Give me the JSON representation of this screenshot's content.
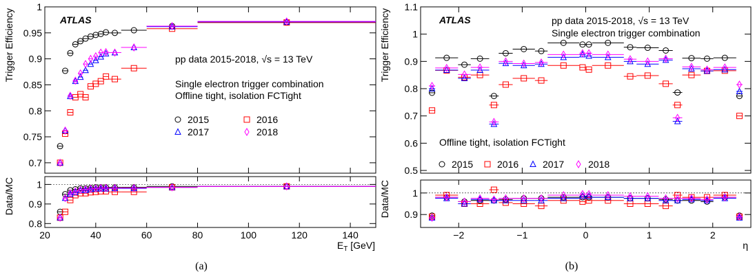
{
  "chart_data": [
    {
      "type": "scatter",
      "panel_label": "(a)",
      "atlas_label": "ATLAS",
      "info_lines": [
        "pp data 2015-2018, √s = 13 TeV",
        "",
        "Single electron trigger combination",
        "Offline tight, isolation FCTight"
      ],
      "ylabel": "Trigger Efficiency",
      "ratio_ylabel": "Data/MC",
      "xlabel": "E_T [GeV]",
      "xlim": [
        20,
        150
      ],
      "ylim": [
        0.68,
        1.0
      ],
      "ratio_ylim": [
        0.78,
        1.04
      ],
      "xticks": [
        20,
        40,
        60,
        80,
        100,
        120,
        140
      ],
      "yticks": [
        0.7,
        0.75,
        0.8,
        0.85,
        0.9,
        0.95,
        1
      ],
      "ratio_yticks": [
        0.8,
        0.9,
        1
      ],
      "legend_columns": 2,
      "x_bins": [
        [
          25,
          27
        ],
        [
          27,
          29
        ],
        [
          29,
          31
        ],
        [
          31,
          33
        ],
        [
          33,
          35
        ],
        [
          35,
          37
        ],
        [
          37,
          39
        ],
        [
          39,
          41
        ],
        [
          41,
          43
        ],
        [
          43,
          45
        ],
        [
          45,
          50
        ],
        [
          50,
          60
        ],
        [
          60,
          80
        ],
        [
          80,
          150
        ]
      ],
      "series": [
        {
          "name": "2015",
          "marker": "circle",
          "color": "#000000",
          "values": [
            0.732,
            0.877,
            0.911,
            0.928,
            0.934,
            0.939,
            0.943,
            0.946,
            0.948,
            0.951,
            0.95,
            0.955,
            0.963,
            0.97
          ],
          "ratio": [
            0.86,
            0.95,
            0.97,
            0.975,
            0.98,
            0.98,
            0.982,
            0.985,
            0.985,
            0.985,
            0.985,
            0.985,
            0.99,
            0.99
          ]
        },
        {
          "name": "2016",
          "marker": "square",
          "color": "#ff0000",
          "values": [
            0.7,
            0.756,
            0.797,
            0.826,
            0.832,
            0.826,
            0.847,
            0.852,
            0.857,
            0.866,
            0.861,
            0.882,
            0.958,
            0.97
          ],
          "ratio": [
            0.83,
            0.86,
            0.92,
            0.945,
            0.955,
            0.955,
            0.96,
            0.962,
            0.965,
            0.965,
            0.962,
            0.962,
            0.985,
            0.99
          ]
        },
        {
          "name": "2017",
          "marker": "triangle",
          "color": "#0000ff",
          "values": [
            0.7,
            0.762,
            0.828,
            0.857,
            0.865,
            0.878,
            0.89,
            0.897,
            0.904,
            0.91,
            0.912,
            0.922,
            0.962,
            0.971
          ],
          "ratio": [
            0.83,
            0.93,
            0.95,
            0.96,
            0.97,
            0.97,
            0.975,
            0.978,
            0.978,
            0.978,
            0.98,
            0.98,
            0.985,
            0.99
          ]
        },
        {
          "name": "2018",
          "marker": "diamond",
          "color": "#ff00ff",
          "values": [
            0.7,
            0.762,
            0.829,
            0.858,
            0.872,
            0.89,
            0.9,
            0.905,
            0.912,
            0.913,
            0.912,
            0.922,
            0.963,
            0.972
          ],
          "ratio": [
            0.83,
            0.93,
            0.955,
            0.965,
            0.972,
            0.975,
            0.978,
            0.98,
            0.982,
            0.982,
            0.982,
            0.982,
            0.985,
            0.99
          ]
        }
      ]
    },
    {
      "type": "scatter",
      "panel_label": "(b)",
      "atlas_label": "ATLAS",
      "info_lines": [
        "pp data 2015-2018, √s = 13 TeV",
        "Single electron trigger combination"
      ],
      "cut_label": "Offline tight, isolation FCTight",
      "ylabel": "Trigger Efficiency",
      "ratio_ylabel": "Data/MC",
      "xlabel": "η",
      "xlim": [
        -2.6,
        2.6
      ],
      "ylim": [
        0.49,
        1.1
      ],
      "ratio_ylim": [
        0.84,
        1.06
      ],
      "xticks": [
        -2,
        -1,
        0,
        1,
        2
      ],
      "yticks": [
        0.5,
        0.6,
        0.7,
        0.8,
        0.9,
        1,
        1.1
      ],
      "ratio_yticks": [
        0.9,
        1
      ],
      "legend_columns": 4,
      "x_bins": [
        [
          -2.47,
          -2.37
        ],
        [
          -2.37,
          -2.01
        ],
        [
          -2.01,
          -1.81
        ],
        [
          -1.81,
          -1.52
        ],
        [
          -1.52,
          -1.37
        ],
        [
          -1.37,
          -1.15
        ],
        [
          -1.15,
          -0.8
        ],
        [
          -0.8,
          -0.6
        ],
        [
          -0.6,
          -0.1
        ],
        [
          -0.1,
          0
        ],
        [
          0,
          0.1
        ],
        [
          0.1,
          0.6
        ],
        [
          0.6,
          0.8
        ],
        [
          0.8,
          1.15
        ],
        [
          1.15,
          1.37
        ],
        [
          1.37,
          1.52
        ],
        [
          1.52,
          1.81
        ],
        [
          1.81,
          2.01
        ],
        [
          2.01,
          2.37
        ],
        [
          2.37,
          2.47
        ]
      ],
      "series": [
        {
          "name": "2015",
          "marker": "circle",
          "color": "#000000",
          "values": [
            0.785,
            0.913,
            0.888,
            0.91,
            0.773,
            0.93,
            0.945,
            0.938,
            0.968,
            0.962,
            0.962,
            0.968,
            0.952,
            0.95,
            0.94,
            0.786,
            0.912,
            0.91,
            0.913,
            0.773
          ],
          "ratio": [
            0.895,
            0.98,
            0.96,
            0.965,
            0.965,
            0.97,
            0.975,
            0.975,
            0.98,
            0.98,
            0.98,
            0.98,
            0.975,
            0.975,
            0.97,
            0.965,
            0.965,
            0.96,
            0.98,
            0.895
          ]
        },
        {
          "name": "2016",
          "marker": "square",
          "color": "#ff0000",
          "values": [
            0.72,
            0.867,
            0.842,
            0.85,
            0.74,
            0.815,
            0.838,
            0.83,
            0.885,
            0.878,
            0.87,
            0.885,
            0.845,
            0.848,
            0.818,
            0.74,
            0.85,
            0.865,
            0.866,
            0.7
          ],
          "ratio": [
            0.89,
            0.99,
            0.95,
            0.95,
            1.015,
            0.955,
            0.95,
            0.94,
            0.965,
            0.96,
            0.965,
            0.965,
            0.95,
            0.95,
            0.94,
            0.99,
            0.98,
            0.98,
            0.99,
            0.89
          ]
        },
        {
          "name": "2017",
          "marker": "triangle",
          "color": "#0000ff",
          "values": [
            0.8,
            0.868,
            0.838,
            0.868,
            0.67,
            0.893,
            0.885,
            0.89,
            0.915,
            0.925,
            0.92,
            0.915,
            0.9,
            0.89,
            0.905,
            0.68,
            0.873,
            0.865,
            0.87,
            0.79
          ],
          "ratio": [
            0.885,
            0.975,
            0.95,
            0.97,
            0.965,
            0.965,
            0.965,
            0.965,
            0.975,
            0.985,
            0.985,
            0.98,
            0.975,
            0.975,
            0.965,
            0.965,
            0.97,
            0.965,
            0.975,
            0.885
          ]
        },
        {
          "name": "2018",
          "marker": "diamond",
          "color": "#ff00ff",
          "values": [
            0.81,
            0.876,
            0.852,
            0.878,
            0.678,
            0.9,
            0.892,
            0.896,
            0.925,
            0.93,
            0.93,
            0.925,
            0.908,
            0.9,
            0.91,
            0.693,
            0.88,
            0.87,
            0.878,
            0.815
          ],
          "ratio": [
            0.885,
            0.98,
            0.96,
            0.975,
            0.97,
            0.975,
            0.975,
            0.975,
            0.99,
            0.995,
            0.995,
            0.99,
            0.985,
            0.985,
            0.975,
            0.975,
            0.975,
            0.97,
            0.98,
            0.89
          ]
        }
      ]
    }
  ]
}
